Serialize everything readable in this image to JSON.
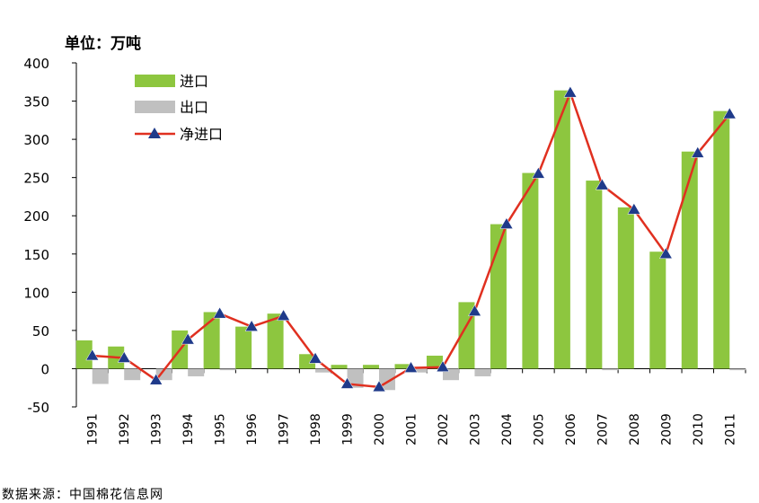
{
  "chart_data": {
    "type": "bar",
    "unit_label": "单位：万吨",
    "categories": [
      "1991",
      "1992",
      "1993",
      "1994",
      "1995",
      "1996",
      "1997",
      "1998",
      "1999",
      "2000",
      "2001",
      "2002",
      "2003",
      "2004",
      "2005",
      "2006",
      "2007",
      "2008",
      "2009",
      "2010",
      "2011"
    ],
    "series": [
      {
        "name": "进口",
        "kind": "bar",
        "color": "#8dc63f",
        "values": [
          37,
          29,
          0,
          50,
          74,
          55,
          72,
          19,
          5,
          5,
          6,
          17,
          87,
          189,
          256,
          364,
          246,
          211,
          153,
          284,
          337
        ]
      },
      {
        "name": "出口",
        "kind": "bar",
        "color": "#c0c0c0",
        "values": [
          -20,
          -15,
          -15,
          -10,
          -2,
          0,
          0,
          -5,
          -25,
          -28,
          -5,
          -15,
          -10,
          0,
          0,
          0,
          -2,
          0,
          0,
          0,
          -2
        ]
      },
      {
        "name": "净进口",
        "kind": "line",
        "color": "#e03020",
        "marker_color": "#1f3a8a",
        "values": [
          17,
          14,
          -15,
          38,
          72,
          55,
          69,
          13,
          -20,
          -24,
          1,
          2,
          75,
          189,
          255,
          361,
          240,
          208,
          150,
          282,
          333
        ]
      }
    ],
    "ylim": [
      -50,
      400
    ],
    "yticks": [
      -50,
      0,
      50,
      100,
      150,
      200,
      250,
      300,
      350,
      400
    ],
    "legend_position": "top-left",
    "grid": false
  },
  "source_note": "数据来源：中国棉花信息网"
}
